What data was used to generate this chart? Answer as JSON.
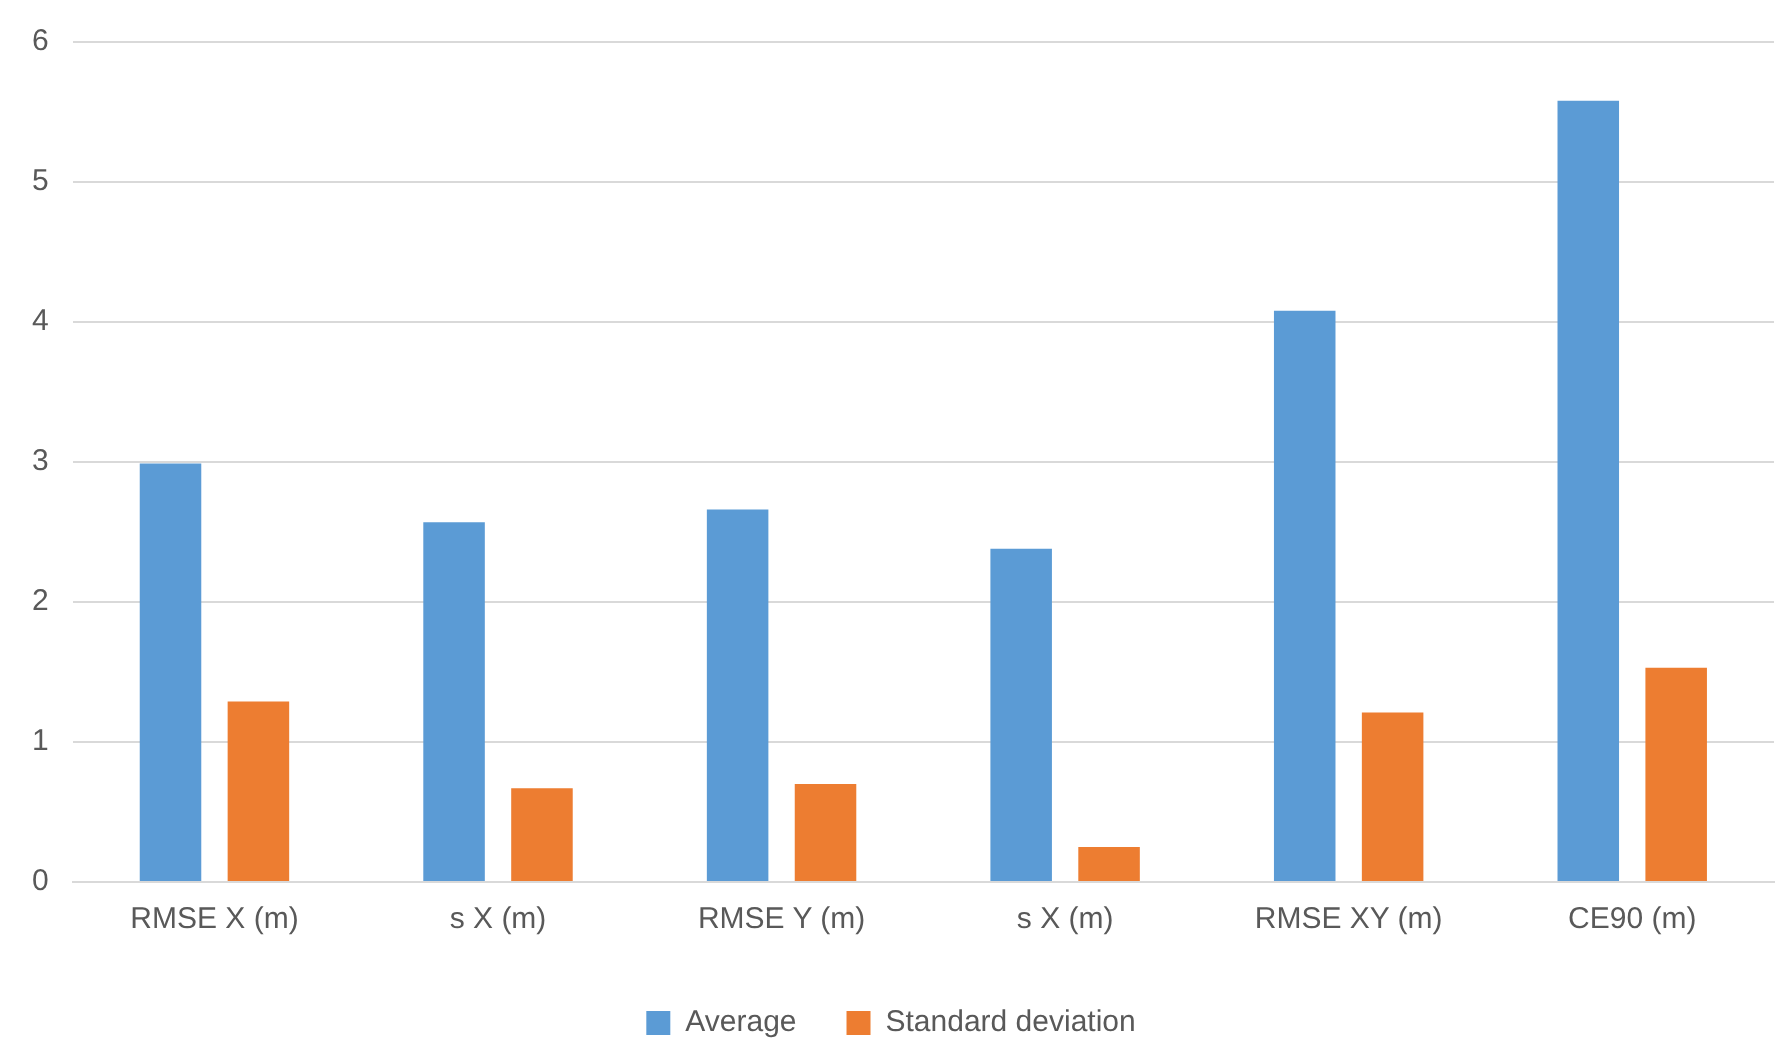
{
  "chart_data": {
    "type": "bar",
    "categories": [
      "RMSE X (m)",
      "s X (m)",
      "RMSE Y (m)",
      "s X (m)",
      "RMSE XY (m)",
      "CE90 (m)"
    ],
    "series": [
      {
        "name": "Average",
        "color": "#5b9bd5",
        "values": [
          2.99,
          2.57,
          2.66,
          2.38,
          4.08,
          5.58
        ]
      },
      {
        "name": "Standard deviation",
        "color": "#ed7d31",
        "values": [
          1.29,
          0.67,
          0.7,
          0.25,
          1.21,
          1.53
        ]
      }
    ],
    "ylim": [
      0,
      6
    ],
    "yticks": [
      0,
      1,
      2,
      3,
      4,
      5,
      6
    ],
    "grid": "y",
    "legend": "bottom"
  }
}
